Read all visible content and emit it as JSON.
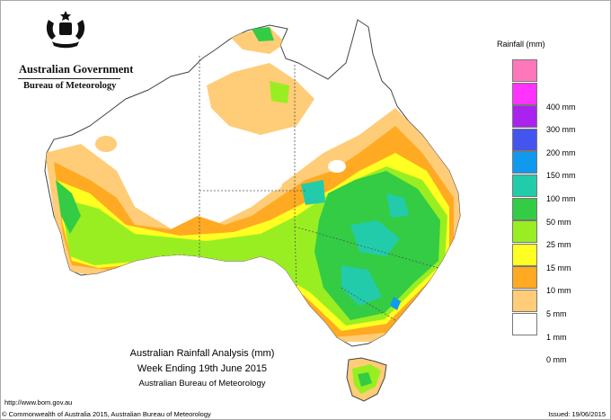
{
  "header": {
    "government": "Australian Government",
    "bureau": "Bureau of Meteorology"
  },
  "legend": {
    "title": "Rainfall (mm)",
    "items": [
      {
        "label": "",
        "color": "#ff77bb"
      },
      {
        "label": "400 mm",
        "color": "#ff33ff"
      },
      {
        "label": "300 mm",
        "color": "#aa22ee"
      },
      {
        "label": "200 mm",
        "color": "#4455ee"
      },
      {
        "label": "150 mm",
        "color": "#1199ee"
      },
      {
        "label": "100 mm",
        "color": "#22ccaa"
      },
      {
        "label": "50 mm",
        "color": "#33cc44"
      },
      {
        "label": "25 mm",
        "color": "#99ee22"
      },
      {
        "label": "15 mm",
        "color": "#ffff22"
      },
      {
        "label": "10 mm",
        "color": "#ffaa22"
      },
      {
        "label": "5 mm",
        "color": "#ffcc77"
      },
      {
        "label": "1 mm",
        "color": "#ffffff"
      },
      {
        "label": "0 mm",
        "color": ""
      }
    ]
  },
  "map": {
    "title_line1": "Australian Rainfall Analysis (mm)",
    "title_line2": "Week Ending 19th June 2015",
    "title_line3": "Australian Bureau of Meteorology"
  },
  "footer": {
    "url": "http://www.bom.gov.au",
    "copyright": "© Commonwealth of Australia 2015, Australian Bureau of Meteorology",
    "issued": "Issued: 19/06/2015"
  }
}
